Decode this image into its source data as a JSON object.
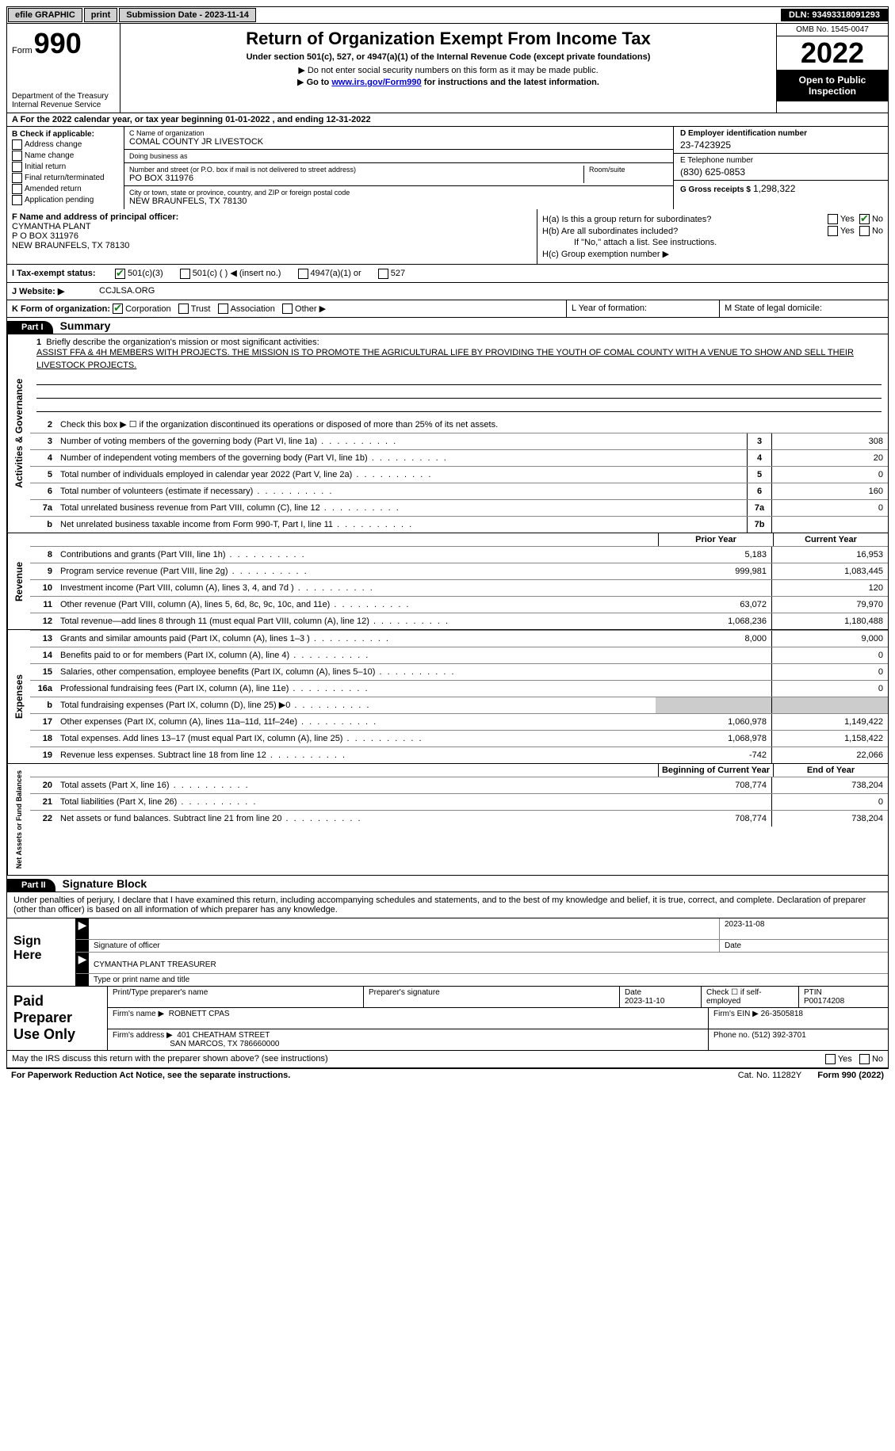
{
  "topbar": {
    "efile": "efile GRAPHIC",
    "print": "print",
    "submission": "Submission Date - 2023-11-14",
    "dln": "DLN: 93493318091293"
  },
  "header": {
    "form_word": "Form",
    "form_num": "990",
    "dept": "Department of the Treasury\nInternal Revenue Service",
    "title": "Return of Organization Exempt From Income Tax",
    "sub1": "Under section 501(c), 527, or 4947(a)(1) of the Internal Revenue Code (except private foundations)",
    "sub2": "Do not enter social security numbers on this form as it may be made public.",
    "sub3_pre": "Go to ",
    "sub3_link": "www.irs.gov/Form990",
    "sub3_post": " for instructions and the latest information.",
    "omb": "OMB No. 1545-0047",
    "year": "2022",
    "open": "Open to Public Inspection"
  },
  "row_a": "A For the 2022 calendar year, or tax year beginning 01-01-2022    , and ending 12-31-2022",
  "section_b": {
    "title": "B Check if applicable:",
    "items": [
      "Address change",
      "Name change",
      "Initial return",
      "Final return/terminated",
      "Amended return",
      "Application pending"
    ]
  },
  "section_c": {
    "name_label": "C Name of organization",
    "name": "COMAL COUNTY JR LIVESTOCK",
    "dba_label": "Doing business as",
    "dba": "",
    "street_label": "Number and street (or P.O. box if mail is not delivered to street address)",
    "room_label": "Room/suite",
    "street": "PO BOX 311976",
    "city_label": "City or town, state or province, country, and ZIP or foreign postal code",
    "city": "NEW BRAUNFELS, TX  78130"
  },
  "section_d": {
    "label": "D Employer identification number",
    "val": "23-7423925"
  },
  "section_e": {
    "label": "E Telephone number",
    "val": "(830) 625-0853"
  },
  "section_g": {
    "label": "G Gross receipts $",
    "val": "1,298,322"
  },
  "section_f": {
    "label": "F Name and address of principal officer:",
    "name": "CYMANTHA PLANT",
    "addr1": "P O BOX 311976",
    "addr2": "NEW BRAUNFELS, TX  78130"
  },
  "section_h": {
    "ha": "H(a)  Is this a group return for subordinates?",
    "hb": "H(b)  Are all subordinates included?",
    "hb_note": "If \"No,\" attach a list. See instructions.",
    "hc": "H(c)  Group exemption number ▶",
    "yes": "Yes",
    "no": "No"
  },
  "row_i": {
    "label": "I   Tax-exempt status:",
    "opts": [
      "501(c)(3)",
      "501(c) (  ) ◀ (insert no.)",
      "4947(a)(1) or",
      "527"
    ]
  },
  "row_j": {
    "label": "J   Website: ▶",
    "val": "CCJLSA.ORG"
  },
  "row_k": {
    "left_label": "K Form of organization:",
    "opts": [
      "Corporation",
      "Trust",
      "Association",
      "Other ▶"
    ],
    "mid": "L Year of formation:",
    "right": "M State of legal domicile:"
  },
  "part1": {
    "hdr": "Part I",
    "title": "Summary",
    "side_ag": "Activities & Governance",
    "side_rev": "Revenue",
    "side_exp": "Expenses",
    "side_na": "Net Assets or Fund Balances",
    "line1_label": "Briefly describe the organization's mission or most significant activities:",
    "mission": "ASSIST FFA & 4H MEMBERS WITH PROJECTS. THE MISSION IS TO PROMOTE THE AGRICULTURAL LIFE BY PROVIDING THE YOUTH OF COMAL COUNTY WITH A VENUE TO SHOW AND SELL THEIR LIVESTOCK PROJECTS.",
    "line2": "Check this box ▶ ☐  if the organization discontinued its operations or disposed of more than 25% of its net assets.",
    "lines_ag": [
      {
        "n": "3",
        "t": "Number of voting members of the governing body (Part VI, line 1a)",
        "box": "3",
        "v": "308"
      },
      {
        "n": "4",
        "t": "Number of independent voting members of the governing body (Part VI, line 1b)",
        "box": "4",
        "v": "20"
      },
      {
        "n": "5",
        "t": "Total number of individuals employed in calendar year 2022 (Part V, line 2a)",
        "box": "5",
        "v": "0"
      },
      {
        "n": "6",
        "t": "Total number of volunteers (estimate if necessary)",
        "box": "6",
        "v": "160"
      },
      {
        "n": "7a",
        "t": "Total unrelated business revenue from Part VIII, column (C), line 12",
        "box": "7a",
        "v": "0"
      },
      {
        "n": "b",
        "t": "Net unrelated business taxable income from Form 990-T, Part I, line 11",
        "box": "7b",
        "v": ""
      }
    ],
    "col_prior": "Prior Year",
    "col_current": "Current Year",
    "lines_rev": [
      {
        "n": "8",
        "t": "Contributions and grants (Part VIII, line 1h)",
        "p": "5,183",
        "c": "16,953"
      },
      {
        "n": "9",
        "t": "Program service revenue (Part VIII, line 2g)",
        "p": "999,981",
        "c": "1,083,445"
      },
      {
        "n": "10",
        "t": "Investment income (Part VIII, column (A), lines 3, 4, and 7d )",
        "p": "",
        "c": "120"
      },
      {
        "n": "11",
        "t": "Other revenue (Part VIII, column (A), lines 5, 6d, 8c, 9c, 10c, and 11e)",
        "p": "63,072",
        "c": "79,970"
      },
      {
        "n": "12",
        "t": "Total revenue—add lines 8 through 11 (must equal Part VIII, column (A), line 12)",
        "p": "1,068,236",
        "c": "1,180,488"
      }
    ],
    "lines_exp": [
      {
        "n": "13",
        "t": "Grants and similar amounts paid (Part IX, column (A), lines 1–3 )",
        "p": "8,000",
        "c": "9,000"
      },
      {
        "n": "14",
        "t": "Benefits paid to or for members (Part IX, column (A), line 4)",
        "p": "",
        "c": "0"
      },
      {
        "n": "15",
        "t": "Salaries, other compensation, employee benefits (Part IX, column (A), lines 5–10)",
        "p": "",
        "c": "0"
      },
      {
        "n": "16a",
        "t": "Professional fundraising fees (Part IX, column (A), line 11e)",
        "p": "",
        "c": "0"
      },
      {
        "n": "b",
        "t": "Total fundraising expenses (Part IX, column (D), line 25) ▶0",
        "p": "shaded",
        "c": "shaded"
      },
      {
        "n": "17",
        "t": "Other expenses (Part IX, column (A), lines 11a–11d, 11f–24e)",
        "p": "1,060,978",
        "c": "1,149,422"
      },
      {
        "n": "18",
        "t": "Total expenses. Add lines 13–17 (must equal Part IX, column (A), line 25)",
        "p": "1,068,978",
        "c": "1,158,422"
      },
      {
        "n": "19",
        "t": "Revenue less expenses. Subtract line 18 from line 12",
        "p": "-742",
        "c": "22,066"
      }
    ],
    "col_begin": "Beginning of Current Year",
    "col_end": "End of Year",
    "lines_na": [
      {
        "n": "20",
        "t": "Total assets (Part X, line 16)",
        "p": "708,774",
        "c": "738,204"
      },
      {
        "n": "21",
        "t": "Total liabilities (Part X, line 26)",
        "p": "",
        "c": "0"
      },
      {
        "n": "22",
        "t": "Net assets or fund balances. Subtract line 21 from line 20",
        "p": "708,774",
        "c": "738,204"
      }
    ]
  },
  "part2": {
    "hdr": "Part II",
    "title": "Signature Block",
    "decl": "Under penalties of perjury, I declare that I have examined this return, including accompanying schedules and statements, and to the best of my knowledge and belief, it is true, correct, and complete. Declaration of preparer (other than officer) is based on all information of which preparer has any knowledge.",
    "sign_here": "Sign Here",
    "sig_officer": "Signature of officer",
    "sig_date": "2023-11-08",
    "sig_date_label": "Date",
    "sig_name": "CYMANTHA PLANT TREASURER",
    "sig_name_label": "Type or print name and title",
    "paid": "Paid Preparer Use Only",
    "prep_name_label": "Print/Type preparer's name",
    "prep_sig_label": "Preparer's signature",
    "prep_date_label": "Date",
    "prep_date": "2023-11-10",
    "prep_check": "Check ☐ if self-employed",
    "ptin_label": "PTIN",
    "ptin": "P00174208",
    "firm_name_label": "Firm's name    ▶",
    "firm_name": "ROBNETT CPAS",
    "firm_ein_label": "Firm's EIN ▶",
    "firm_ein": "26-3505818",
    "firm_addr_label": "Firm's address ▶",
    "firm_addr1": "401 CHEATHAM STREET",
    "firm_addr2": "SAN MARCOS, TX  786660000",
    "firm_phone_label": "Phone no.",
    "firm_phone": "(512) 392-3701",
    "discuss": "May the IRS discuss this return with the preparer shown above? (see instructions)"
  },
  "footer": {
    "left": "For Paperwork Reduction Act Notice, see the separate instructions.",
    "mid": "Cat. No. 11282Y",
    "right": "Form 990 (2022)"
  }
}
